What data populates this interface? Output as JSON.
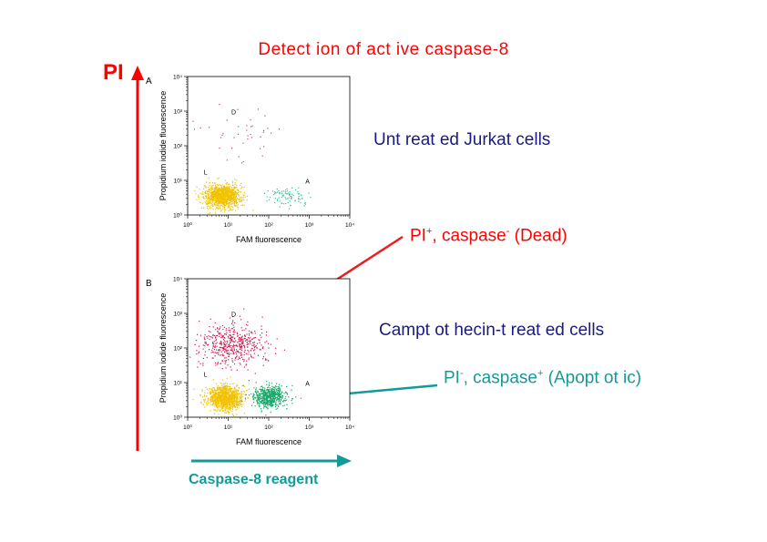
{
  "title": "Detect ion of act ive caspase-8",
  "axis_arrow_y_label": "PI",
  "axis_arrow_x_label": "Caspase-8 reagent",
  "conditions": {
    "untreated": "Unt reat ed Jurkat cells",
    "treated": "Campt ot hecin-t reat ed cells"
  },
  "annotations": {
    "dead": {
      "text": "PI",
      "sup1": "+",
      "text2": ", caspase",
      "sup2": "-",
      "text3": " (Dead)"
    },
    "apoptotic": {
      "text": "PI",
      "sup1": "-",
      "text2": ", caspase",
      "sup2": "+",
      "text3": " (Apopt ot ic)"
    }
  },
  "colors": {
    "title": "#ff0000",
    "pi_arrow": "#ff0000",
    "reagent_arrow": "#129a9a",
    "condition_text": "#1a1a80",
    "live": "#f2c200",
    "dead": "#cc1f55",
    "apoptotic": "#1aa86a"
  },
  "chart_data": [
    {
      "type": "scatter",
      "panel_label": "A",
      "xlabel": "FAM fluorescence",
      "ylabel": "Propidium iodide fluorescence",
      "x_scale": "log",
      "y_scale": "log",
      "xlim": [
        1,
        10000
      ],
      "ylim": [
        1,
        10000
      ],
      "x_ticks": [
        "10⁰",
        "10¹",
        "10²",
        "10³",
        "10⁴"
      ],
      "y_ticks": [
        "10⁰",
        "10¹",
        "10²",
        "10³",
        "10⁴"
      ],
      "regions": [
        {
          "label": "L",
          "x": 2.5,
          "y": 15
        },
        {
          "label": "D",
          "x": 12,
          "y": 800
        },
        {
          "label": "A",
          "x": 800,
          "y": 8
        }
      ],
      "populations": [
        {
          "name": "L",
          "color": "#f2c200",
          "center": [
            7,
            3.5
          ],
          "spread": [
            0.22,
            0.17
          ],
          "count": 1100
        },
        {
          "name": "A",
          "color": "#3cc0a0",
          "center": [
            300,
            3.5
          ],
          "spread": [
            0.25,
            0.14
          ],
          "count": 90
        },
        {
          "name": "D",
          "color": "#cc4477",
          "center": [
            25,
            200
          ],
          "spread": [
            0.55,
            0.45
          ],
          "count": 40
        }
      ]
    },
    {
      "type": "scatter",
      "panel_label": "B",
      "xlabel": "FAM fluorescence",
      "ylabel": "Propidium iodide fluorescence",
      "x_scale": "log",
      "y_scale": "log",
      "xlim": [
        1,
        10000
      ],
      "ylim": [
        1,
        10000
      ],
      "x_ticks": [
        "10⁰",
        "10¹",
        "10²",
        "10³",
        "10⁴"
      ],
      "y_ticks": [
        "10⁰",
        "10¹",
        "10²",
        "10³",
        "10⁴"
      ],
      "regions": [
        {
          "label": "L",
          "x": 2.5,
          "y": 15
        },
        {
          "label": "D",
          "x": 12,
          "y": 800
        },
        {
          "label": "A",
          "x": 800,
          "y": 8
        }
      ],
      "populations": [
        {
          "name": "L",
          "color": "#f2c200",
          "center": [
            8,
            3.5
          ],
          "spread": [
            0.22,
            0.17
          ],
          "count": 1100
        },
        {
          "name": "A",
          "color": "#1aa86a",
          "center": [
            100,
            3.8
          ],
          "spread": [
            0.2,
            0.15
          ],
          "count": 600
        },
        {
          "name": "D",
          "color": "#cc1f55",
          "center": [
            12,
            120
          ],
          "spread": [
            0.4,
            0.3
          ],
          "count": 500
        }
      ]
    }
  ]
}
